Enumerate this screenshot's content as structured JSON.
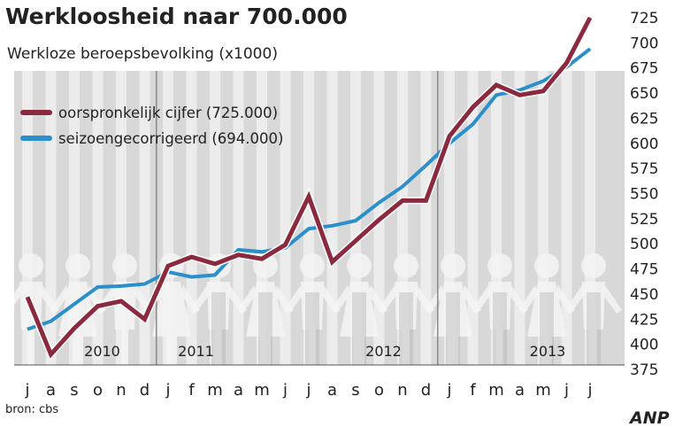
{
  "title": "Werkloosheid naar 700.000",
  "source": "bron: cbs",
  "brand": "ANP",
  "chart_data": {
    "type": "line",
    "title": "Werkloosheid naar 700.000",
    "ylabel": "Werkloze beroepsbevolking (x1000)",
    "xlabel": "",
    "ylim": [
      375,
      725
    ],
    "yticks": [
      375,
      400,
      425,
      450,
      475,
      500,
      525,
      550,
      575,
      600,
      625,
      650,
      675,
      700,
      725
    ],
    "categories": [
      "j",
      "a",
      "s",
      "o",
      "n",
      "d",
      "j",
      "f",
      "m",
      "a",
      "m",
      "j",
      "j",
      "a",
      "s",
      "o",
      "n",
      "d",
      "j",
      "f",
      "m",
      "a",
      "m",
      "j",
      "j"
    ],
    "years": [
      {
        "label": "2010",
        "index": 3
      },
      {
        "label": "2011",
        "index": 7
      },
      {
        "label": "2012",
        "index": 15
      },
      {
        "label": "2013",
        "index": 22
      }
    ],
    "year_separators": [
      5.5,
      17.5
    ],
    "grid": false,
    "legend": "top-left",
    "series": [
      {
        "name": "oorspronkelijk cijfer (725.000)",
        "color": "#8b2a3f",
        "values": [
          447,
          390,
          416,
          438,
          443,
          425,
          478,
          487,
          480,
          489,
          485,
          499,
          547,
          482,
          503,
          524,
          543,
          543,
          607,
          636,
          658,
          648,
          652,
          680,
          725
        ]
      },
      {
        "name": "seizoengecorrigeerd (694.000)",
        "color": "#2b8fca",
        "values": [
          415,
          423,
          440,
          457,
          458,
          460,
          472,
          467,
          469,
          494,
          492,
          496,
          515,
          518,
          523,
          541,
          557,
          578,
          600,
          619,
          648,
          653,
          662,
          676,
          694
        ]
      }
    ]
  }
}
